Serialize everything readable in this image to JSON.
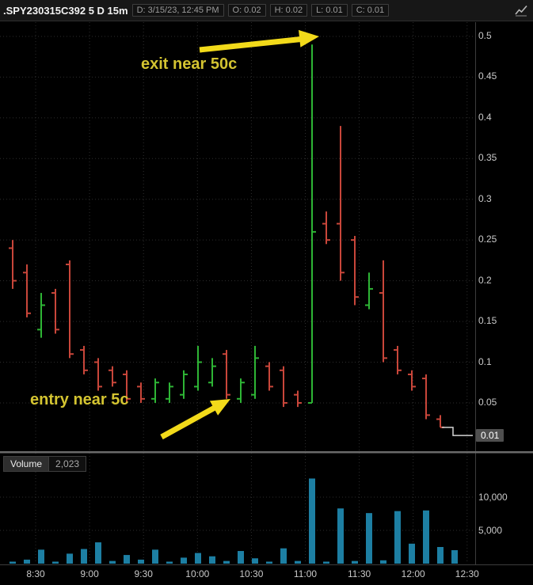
{
  "header": {
    "title": ".SPY230315C392 5 D 15m",
    "fields": [
      "D: 3/15/23, 12:45 PM",
      "O: 0.02",
      "H: 0.02",
      "L: 0.01",
      "C: 0.01"
    ]
  },
  "annotations": {
    "exit": {
      "text": "exit near 50c"
    },
    "entry": {
      "text": "entry near 5c"
    },
    "text_color": "#d4c431",
    "arrow_color": "#f2da1a"
  },
  "volume_pane": {
    "label": "Volume",
    "current_value": "2,023"
  },
  "price_axis": {
    "tick_labels": [
      "0.5",
      "0.45",
      "0.4",
      "0.35",
      "0.3",
      "0.25",
      "0.2",
      "0.15",
      "0.1",
      "0.05"
    ],
    "tick_values": [
      0.5,
      0.45,
      0.4,
      0.35,
      0.3,
      0.25,
      0.2,
      0.15,
      0.1,
      0.05
    ],
    "last_price_label": "0.01",
    "last_price_value": 0.01
  },
  "volume_axis": {
    "tick_labels": [
      "10,000",
      "5,000"
    ],
    "tick_values": [
      10000,
      5000
    ]
  },
  "time_axis": {
    "labels": [
      "8:30",
      "9:00",
      "9:30",
      "10:00",
      "10:30",
      "11:00",
      "11:30",
      "12:00",
      "12:30"
    ]
  },
  "colors": {
    "up": "#2eb535",
    "down": "#c9463a",
    "volume": "#1d7fa3",
    "grid": "#2d2d2d",
    "axis_text": "#c9c9c9",
    "background": "#000000",
    "panel": "#171717",
    "divider": "#6a6a6a",
    "trail": "#d4d4d4"
  },
  "chart_data": {
    "type": "ohlc-bars-with-volume",
    "title": ".SPY230315C392",
    "period": "5 D 15m",
    "ylim": [
      0,
      0.52
    ],
    "volume_ylim": [
      0,
      14000
    ],
    "grid": true,
    "columns": [
      "open",
      "high",
      "low",
      "close",
      "volume"
    ],
    "bars": [
      [
        0.24,
        0.25,
        0.19,
        0.2,
        300
      ],
      [
        0.21,
        0.22,
        0.155,
        0.16,
        600
      ],
      [
        0.14,
        0.185,
        0.13,
        0.17,
        2100
      ],
      [
        0.185,
        0.19,
        0.135,
        0.14,
        300
      ],
      [
        0.22,
        0.225,
        0.105,
        0.11,
        1500
      ],
      [
        0.115,
        0.12,
        0.085,
        0.09,
        2200
      ],
      [
        0.1,
        0.105,
        0.065,
        0.07,
        3200
      ],
      [
        0.09,
        0.095,
        0.07,
        0.075,
        400
      ],
      [
        0.085,
        0.09,
        0.05,
        0.055,
        1300
      ],
      [
        0.07,
        0.075,
        0.05,
        0.055,
        600
      ],
      [
        0.055,
        0.08,
        0.05,
        0.075,
        2100
      ],
      [
        0.055,
        0.075,
        0.05,
        0.07,
        300
      ],
      [
        0.06,
        0.09,
        0.055,
        0.085,
        900
      ],
      [
        0.07,
        0.12,
        0.065,
        0.1,
        1600
      ],
      [
        0.075,
        0.105,
        0.07,
        0.095,
        1100
      ],
      [
        0.11,
        0.115,
        0.055,
        0.06,
        400
      ],
      [
        0.055,
        0.08,
        0.05,
        0.075,
        1900
      ],
      [
        0.06,
        0.12,
        0.055,
        0.105,
        800
      ],
      [
        0.095,
        0.1,
        0.065,
        0.07,
        300
      ],
      [
        0.09,
        0.095,
        0.045,
        0.05,
        2300
      ],
      [
        0.06,
        0.065,
        0.045,
        0.05,
        400
      ],
      [
        0.05,
        0.49,
        0.05,
        0.26,
        12800
      ],
      [
        0.27,
        0.285,
        0.245,
        0.25,
        300
      ],
      [
        0.27,
        0.39,
        0.2,
        0.21,
        8300
      ],
      [
        0.25,
        0.255,
        0.17,
        0.18,
        400
      ],
      [
        0.17,
        0.21,
        0.165,
        0.19,
        7600
      ],
      [
        0.185,
        0.225,
        0.1,
        0.105,
        500
      ],
      [
        0.115,
        0.12,
        0.085,
        0.09,
        7900
      ],
      [
        0.085,
        0.09,
        0.065,
        0.07,
        3000
      ],
      [
        0.08,
        0.085,
        0.03,
        0.035,
        8000
      ],
      [
        0.03,
        0.035,
        0.02,
        0.02,
        2500
      ]
    ],
    "last_bar": {
      "open": 0.02,
      "high": 0.02,
      "low": 0.01,
      "close": 0.01,
      "volume": 2023
    }
  }
}
